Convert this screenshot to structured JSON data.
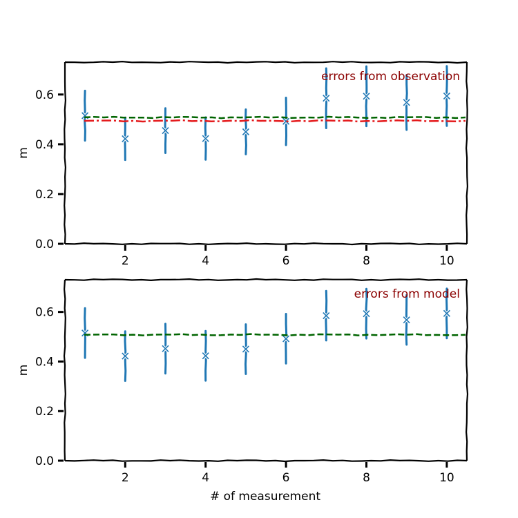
{
  "colors": {
    "background": "#ffffff",
    "axes": "#000000",
    "measurement": "#1f77b4",
    "green_line": "#006400",
    "red_line": "#e41a1c",
    "annotation": "#8b0000"
  },
  "chart_data": [
    {
      "type": "scatter",
      "title": "",
      "xlabel": "",
      "ylabel": "m",
      "xlim": [
        0.5,
        10.5
      ],
      "ylim": [
        0.0,
        0.73
      ],
      "xticks": [
        2,
        4,
        6,
        8,
        10
      ],
      "xtick_labels": [
        "2",
        "4",
        "6",
        "8",
        "10"
      ],
      "yticks": [
        0.0,
        0.2,
        0.4,
        0.6
      ],
      "ytick_labels": [
        "0.0",
        "0.2",
        "0.4",
        "0.6"
      ],
      "annotation": "errors from observation",
      "series": [
        {
          "style": "errorbar-x-markers",
          "color": "#1f77b4",
          "x": [
            1,
            2,
            3,
            4,
            5,
            6,
            7,
            8,
            9,
            10
          ],
          "y": [
            0.515,
            0.422,
            0.455,
            0.423,
            0.45,
            0.492,
            0.585,
            0.593,
            0.568,
            0.594
          ],
          "err": [
            0.1,
            0.085,
            0.09,
            0.085,
            0.09,
            0.095,
            0.12,
            0.12,
            0.11,
            0.12
          ]
        },
        {
          "style": "dashed",
          "color": "#006400",
          "x": [
            0.5,
            10.5
          ],
          "y": [
            0.508,
            0.508
          ]
        },
        {
          "style": "dashdot",
          "color": "#e41a1c",
          "x": [
            0.5,
            10.5
          ],
          "y": [
            0.494,
            0.494
          ]
        }
      ]
    },
    {
      "type": "scatter",
      "title": "",
      "xlabel": "# of measurement",
      "ylabel": "m",
      "xlim": [
        0.5,
        10.5
      ],
      "ylim": [
        0.0,
        0.73
      ],
      "xticks": [
        2,
        4,
        6,
        8,
        10
      ],
      "xtick_labels": [
        "2",
        "4",
        "6",
        "8",
        "10"
      ],
      "yticks": [
        0.0,
        0.2,
        0.4,
        0.6
      ],
      "ytick_labels": [
        "0.0",
        "0.2",
        "0.4",
        "0.6"
      ],
      "annotation": "errors from model",
      "series": [
        {
          "style": "errorbar-x-markers",
          "color": "#1f77b4",
          "x": [
            1,
            2,
            3,
            4,
            5,
            6,
            7,
            8,
            9,
            10
          ],
          "y": [
            0.515,
            0.422,
            0.452,
            0.423,
            0.45,
            0.492,
            0.585,
            0.593,
            0.568,
            0.594
          ],
          "err": [
            0.1,
            0.1,
            0.1,
            0.1,
            0.1,
            0.1,
            0.1,
            0.1,
            0.1,
            0.1
          ]
        },
        {
          "style": "dashed",
          "color": "#006400",
          "x": [
            0.5,
            10.5
          ],
          "y": [
            0.508,
            0.508
          ]
        }
      ]
    }
  ]
}
